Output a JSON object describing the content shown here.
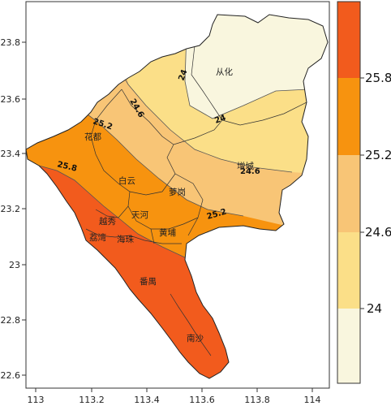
{
  "map": {
    "x_ticks": [
      "113",
      "113.2",
      "113.4",
      "113.6",
      "113.8",
      "114"
    ],
    "y_ticks": [
      "23.8",
      "23.6",
      "23.4",
      "23.2",
      "23",
      "22.8",
      "22.6"
    ],
    "districts": [
      "从化",
      "花都",
      "增城",
      "白云",
      "萝岗",
      "天河",
      "越秀",
      "荔湾",
      "海珠",
      "黄埔",
      "番禺",
      "南沙"
    ],
    "contour_labels": [
      "24",
      "24.6",
      "24",
      "25.2",
      "25.8",
      "24.6",
      "25.2"
    ]
  },
  "colorbar": {
    "ticks": [
      "25.8",
      "25.2",
      "24.6",
      "24"
    ],
    "colors": [
      "#f9f6de",
      "#fbdf88",
      "#f8c576",
      "#f7930f",
      "#f25b1d"
    ]
  },
  "colors": {
    "band_24": "#f9f6de",
    "band_24_6": "#fbdf88",
    "band_25_2": "#f8c576",
    "band_25_8": "#f7930f",
    "band_top": "#f25b1d"
  }
}
